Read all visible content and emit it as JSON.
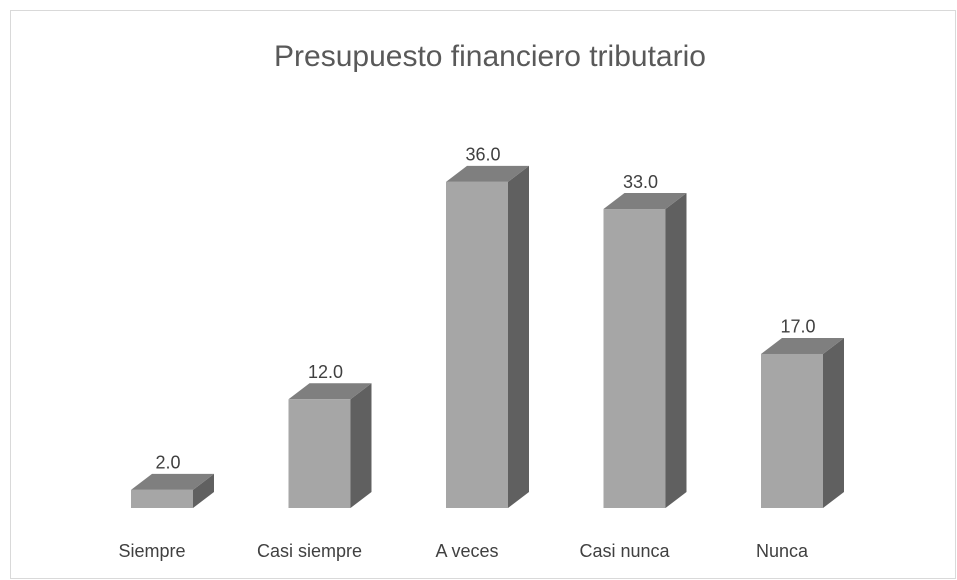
{
  "chart_data": {
    "type": "bar3d",
    "title": "Presupuesto financiero tributario",
    "categories": [
      "Siempre",
      "Casi siempre",
      "A veces",
      "Casi nunca",
      "Nunca"
    ],
    "values": [
      2,
      12,
      36,
      33,
      17
    ],
    "value_labels": [
      "2.0",
      "12.0",
      "36.0",
      "33.0",
      "17.0"
    ],
    "color": "#a6a6a6"
  }
}
